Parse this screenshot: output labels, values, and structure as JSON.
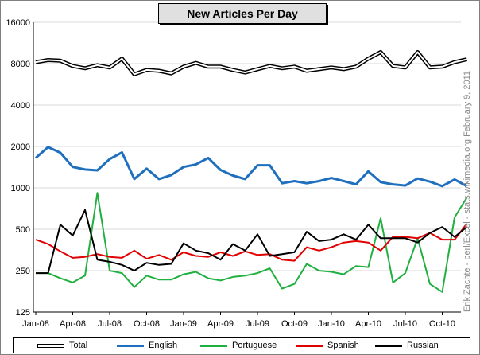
{
  "title": "New Articles Per Day",
  "side_note": "Erik Zachte - perl/Excel - stats.wikimedia.org            February 9, 2011",
  "colors": {
    "total": "#000000",
    "english": "#1f6fbf",
    "portuguese": "#20b040",
    "spanish": "#e00000",
    "russian": "#000000"
  },
  "chart_data": {
    "type": "line",
    "title": "New Articles Per Day",
    "xlabel": "",
    "ylabel": "",
    "y_scale": "log2",
    "ylim": [
      125,
      16000
    ],
    "y_ticks": [
      "16000",
      "8000",
      "4000",
      "2000",
      "1000",
      "500",
      "250",
      "125"
    ],
    "y_tick_values": [
      16000,
      8000,
      4000,
      2000,
      1000,
      500,
      250,
      125
    ],
    "x_tick_labels": [
      "Jan-08",
      "Apr-08",
      "Jul-08",
      "Oct-08",
      "Jan-09",
      "Apr-09",
      "Jul-09",
      "Oct-09",
      "Jan-10",
      "Apr-10",
      "Jul-10",
      "Oct-10"
    ],
    "x": [
      "Jan-08",
      "Feb-08",
      "Mar-08",
      "Apr-08",
      "May-08",
      "Jun-08",
      "Jul-08",
      "Aug-08",
      "Sep-08",
      "Oct-08",
      "Nov-08",
      "Dec-08",
      "Jan-09",
      "Feb-09",
      "Mar-09",
      "Apr-09",
      "May-09",
      "Jun-09",
      "Jul-09",
      "Aug-09",
      "Sep-09",
      "Oct-09",
      "Nov-09",
      "Dec-09",
      "Jan-10",
      "Feb-10",
      "Mar-10",
      "Apr-10",
      "May-10",
      "Jun-10",
      "Jul-10",
      "Aug-10",
      "Sep-10",
      "Oct-10",
      "Nov-10",
      "Dec-10"
    ],
    "grid": "horizontal",
    "legend": "bottom",
    "series": [
      {
        "name": "Total",
        "key": "total",
        "values": [
          8200,
          8500,
          8400,
          7700,
          7400,
          7800,
          7500,
          8700,
          6700,
          7200,
          7100,
          6800,
          7600,
          8100,
          7600,
          7600,
          7200,
          6900,
          7300,
          7700,
          7400,
          7600,
          7100,
          7300,
          7500,
          7300,
          7600,
          8700,
          9700,
          7700,
          7500,
          9700,
          7500,
          7600,
          8200,
          8600
        ]
      },
      {
        "name": "English",
        "key": "english",
        "values": [
          1650,
          1980,
          1800,
          1420,
          1360,
          1340,
          1620,
          1810,
          1160,
          1380,
          1160,
          1240,
          1420,
          1480,
          1650,
          1350,
          1230,
          1160,
          1460,
          1460,
          1080,
          1120,
          1080,
          1120,
          1180,
          1120,
          1060,
          1320,
          1100,
          1060,
          1040,
          1170,
          1110,
          1030,
          1150,
          1030
        ]
      },
      {
        "name": "Portuguese",
        "key": "portuguese",
        "values": [
          240,
          240,
          220,
          205,
          230,
          920,
          250,
          240,
          190,
          230,
          215,
          215,
          235,
          245,
          220,
          212,
          225,
          230,
          240,
          260,
          185,
          200,
          280,
          250,
          245,
          235,
          270,
          265,
          600,
          205,
          240,
          430,
          200,
          175,
          610,
          850
        ]
      },
      {
        "name": "Spanish",
        "key": "spanish",
        "values": [
          420,
          390,
          345,
          310,
          315,
          330,
          315,
          310,
          350,
          305,
          325,
          300,
          340,
          320,
          315,
          340,
          320,
          345,
          325,
          330,
          300,
          295,
          370,
          350,
          370,
          400,
          410,
          400,
          350,
          440,
          440,
          430,
          470,
          420,
          420,
          550
        ]
      },
      {
        "name": "Russian",
        "key": "russian",
        "values": [
          240,
          240,
          540,
          450,
          690,
          300,
          290,
          275,
          250,
          285,
          275,
          280,
          395,
          350,
          335,
          300,
          390,
          350,
          460,
          320,
          330,
          340,
          480,
          410,
          420,
          460,
          420,
          540,
          430,
          430,
          430,
          400,
          470,
          520,
          440,
          520
        ]
      }
    ]
  }
}
